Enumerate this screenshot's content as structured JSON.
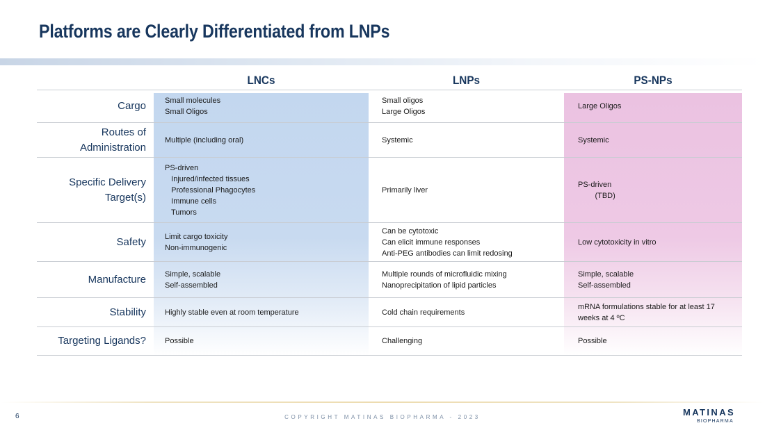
{
  "title": "Platforms are Clearly Differentiated from LNPs",
  "columns": [
    "LNCs",
    "LNPs",
    "PS-NPs"
  ],
  "rows": [
    {
      "label": "Cargo",
      "lnc": "Small molecules\nSmall Oligos",
      "lnp": "Small oligos\nLarge Oligos",
      "ps": "Large Oligos"
    },
    {
      "label": "Routes of\nAdministration",
      "lnc": "Multiple (including oral)",
      "lnp": "Systemic",
      "ps": "Systemic"
    },
    {
      "label": "Specific Delivery\nTarget(s)",
      "lnc": "PS-driven\n   Injured/infected tissues\n   Professional Phagocytes\n   Immune cells\n   Tumors",
      "lnp": "Primarily liver",
      "ps": "PS-driven\n        (TBD)"
    },
    {
      "label": "Safety",
      "lnc": "Limit cargo toxicity\nNon-immunogenic",
      "lnp": "Can be cytotoxic\nCan elicit immune responses\nAnti-PEG antibodies can limit redosing",
      "ps": "Low cytotoxicity in vitro"
    },
    {
      "label": "Manufacture",
      "lnc": "Simple, scalable\nSelf-assembled",
      "lnp": "Multiple rounds of microfluidic mixing\nNanoprecipitation of lipid particles",
      "ps": "Simple, scalable\nSelf-assembled"
    },
    {
      "label": "Stability",
      "lnc": "Highly stable even at room temperature",
      "lnp": "Cold chain requirements",
      "ps": "mRNA formulations stable for at least 17\nweeks at 4 ºC"
    },
    {
      "label": "Targeting Ligands?",
      "lnc": "Possible",
      "lnp": "Challenging",
      "ps": "Possible"
    }
  ],
  "footer": {
    "page_number": "6",
    "copyright": "COPYRIGHT MATINAS BIOPHARMA - 2023",
    "logo_name": "MATINAS",
    "logo_sub": "BIOPHARMA"
  },
  "colors": {
    "title": "#17365d",
    "lnc_column": "#c3d7ef",
    "psnp_column": "#ebc2e1"
  }
}
